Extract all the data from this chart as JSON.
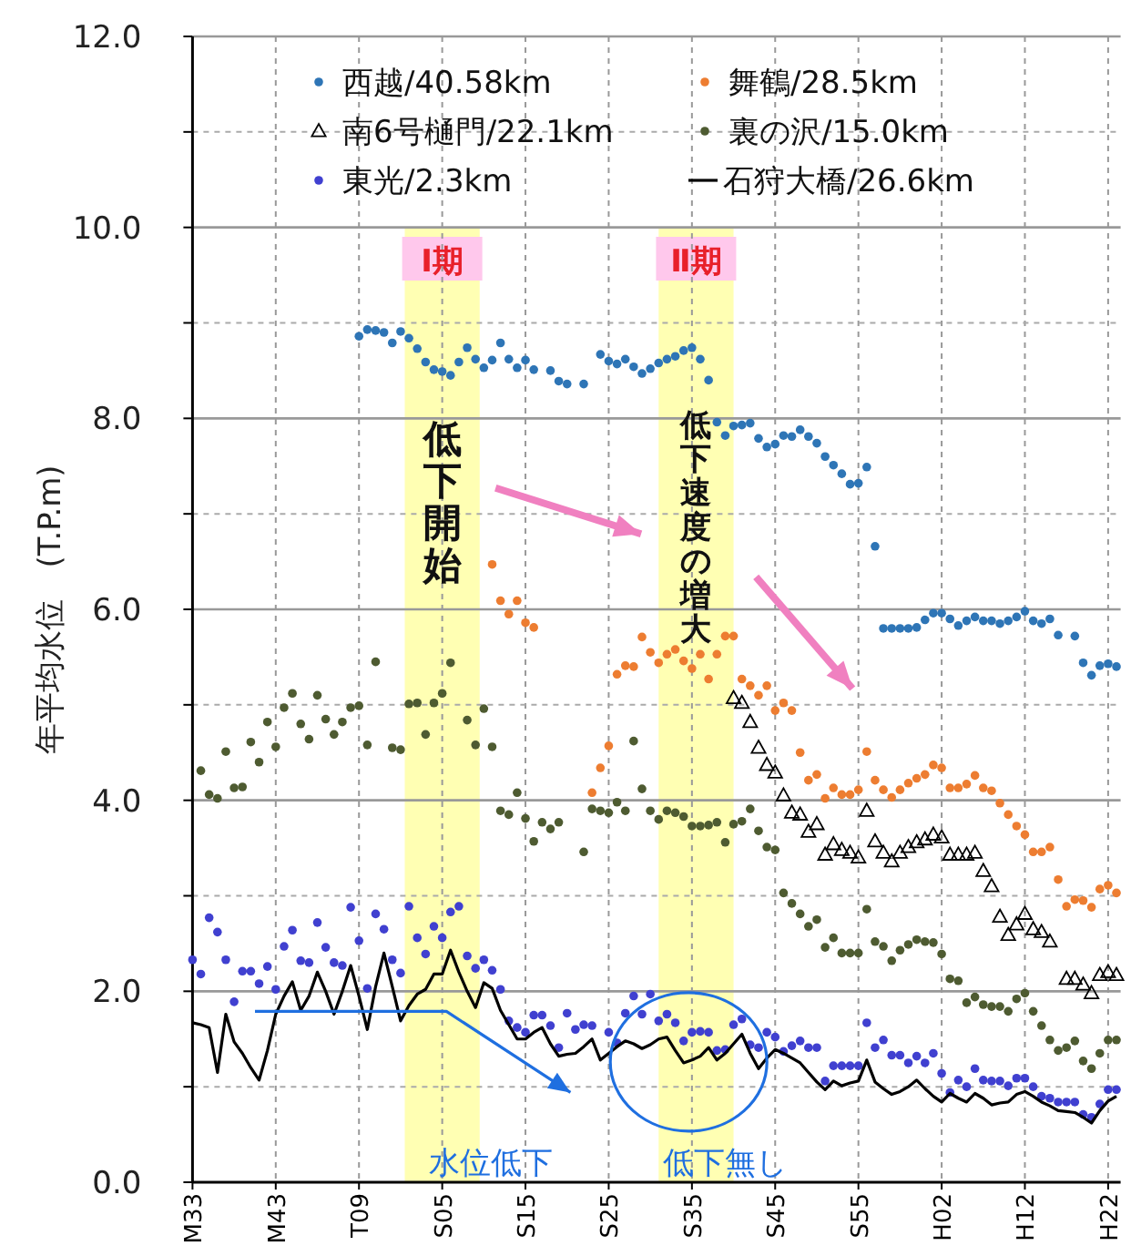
{
  "chart_data": {
    "type": "scatter",
    "ylabel": "年平均水位　(T.P.m)",
    "legend": "top",
    "grid": true,
    "categories": [
      "M33",
      null,
      null,
      null,
      null,
      null,
      null,
      null,
      null,
      null,
      "M43",
      null,
      null,
      null,
      null,
      null,
      null,
      null,
      null,
      null,
      "T09",
      null,
      null,
      null,
      null,
      null,
      null,
      null,
      null,
      null,
      "S05",
      null,
      null,
      null,
      null,
      null,
      null,
      null,
      null,
      null,
      "S15",
      null,
      null,
      null,
      null,
      null,
      null,
      null,
      null,
      null,
      "S25",
      null,
      null,
      null,
      null,
      null,
      null,
      null,
      null,
      null,
      "S35",
      null,
      null,
      null,
      null,
      null,
      null,
      null,
      null,
      null,
      "S45",
      null,
      null,
      null,
      null,
      null,
      null,
      null,
      null,
      null,
      "S55",
      null,
      null,
      null,
      null,
      null,
      null,
      null,
      null,
      null,
      "H02",
      null,
      null,
      null,
      null,
      null,
      null,
      null,
      null,
      null,
      "H12",
      null,
      null,
      null,
      null,
      null,
      null,
      null,
      null,
      null,
      "H22",
      null
    ],
    "ylim": [
      0,
      12
    ],
    "yticks": [
      {
        "value": 0,
        "label": "0.0"
      },
      {
        "value": 1,
        "label": null
      },
      {
        "value": 2,
        "label": "2.0"
      },
      {
        "value": 3,
        "label": null
      },
      {
        "value": 4,
        "label": "4.0"
      },
      {
        "value": 5,
        "label": null
      },
      {
        "value": 6,
        "label": "6.0"
      },
      {
        "value": 7,
        "label": null
      },
      {
        "value": 8,
        "label": "8.0"
      },
      {
        "value": 9,
        "label": null
      },
      {
        "value": 10,
        "label": "10.0"
      },
      {
        "value": 11,
        "label": null
      },
      {
        "value": 12,
        "label": "12.0"
      }
    ],
    "annotations": [
      "低下開始",
      "低下速度の増大",
      "水位低下",
      "低下無し",
      "Ⅰ期",
      "Ⅱ期"
    ],
    "series": [
      {
        "name": "西越/40.58km",
        "color": "#2e75b6",
        "marker": "circle",
        "values": [
          null,
          null,
          null,
          null,
          null,
          null,
          null,
          null,
          null,
          null,
          null,
          null,
          null,
          null,
          null,
          null,
          null,
          null,
          null,
          null,
          8.86,
          8.93,
          8.92,
          8.9,
          8.79,
          8.91,
          8.84,
          8.73,
          8.59,
          8.51,
          8.49,
          8.45,
          8.59,
          8.74,
          8.62,
          8.53,
          8.61,
          8.79,
          8.62,
          8.53,
          8.61,
          8.51,
          null,
          8.5,
          8.39,
          8.36,
          null,
          8.36,
          null,
          8.67,
          8.6,
          8.57,
          8.62,
          8.54,
          8.47,
          8.52,
          8.58,
          8.62,
          8.65,
          8.71,
          8.74,
          8.62,
          8.4,
          7.96,
          7.82,
          7.92,
          7.93,
          7.95,
          7.79,
          7.7,
          7.73,
          7.82,
          7.81,
          7.88,
          7.81,
          7.74,
          7.6,
          7.51,
          7.42,
          7.31,
          7.32,
          7.49,
          6.66,
          5.8,
          5.8,
          5.8,
          5.8,
          5.81,
          5.89,
          5.96,
          5.96,
          5.9,
          5.83,
          5.88,
          5.92,
          5.88,
          5.88,
          5.85,
          5.88,
          5.92,
          5.98,
          5.88,
          5.85,
          5.9,
          5.73,
          null,
          5.72,
          5.44,
          5.31,
          5.41,
          5.43,
          5.4
        ]
      },
      {
        "name": "舞鶴/28.5km",
        "color": "#ed7d31",
        "marker": "circle",
        "values": [
          null,
          null,
          null,
          null,
          null,
          null,
          null,
          null,
          null,
          null,
          null,
          null,
          null,
          null,
          null,
          null,
          null,
          null,
          null,
          null,
          null,
          null,
          null,
          null,
          null,
          null,
          null,
          null,
          null,
          null,
          null,
          null,
          null,
          null,
          null,
          null,
          6.47,
          6.09,
          5.95,
          6.09,
          5.86,
          5.81,
          null,
          null,
          null,
          null,
          null,
          null,
          4.08,
          4.34,
          4.57,
          5.32,
          5.41,
          5.4,
          5.71,
          5.55,
          5.44,
          5.53,
          5.58,
          5.46,
          5.38,
          5.53,
          5.27,
          5.53,
          5.72,
          5.72,
          5.27,
          5.2,
          5.1,
          5.2,
          4.94,
          5.02,
          4.94,
          4.5,
          4.21,
          4.27,
          4.02,
          4.13,
          4.06,
          4.06,
          4.11,
          4.51,
          4.21,
          4.11,
          4.03,
          4.11,
          4.18,
          4.23,
          4.27,
          4.37,
          4.34,
          4.13,
          4.13,
          4.17,
          4.26,
          4.13,
          4.1,
          3.97,
          3.85,
          3.73,
          3.64,
          3.46,
          3.46,
          3.51,
          3.17,
          2.89,
          2.96,
          2.95,
          2.88,
          3.07,
          3.11,
          3.03
        ]
      },
      {
        "name": "南6号樋門/22.1km",
        "color": "#000000",
        "marker": "triangle",
        "values": [
          null,
          null,
          null,
          null,
          null,
          null,
          null,
          null,
          null,
          null,
          null,
          null,
          null,
          null,
          null,
          null,
          null,
          null,
          null,
          null,
          null,
          null,
          null,
          null,
          null,
          null,
          null,
          null,
          null,
          null,
          null,
          null,
          null,
          null,
          null,
          null,
          null,
          null,
          null,
          null,
          null,
          null,
          null,
          null,
          null,
          null,
          null,
          null,
          null,
          null,
          null,
          null,
          null,
          null,
          null,
          null,
          null,
          null,
          null,
          null,
          null,
          null,
          null,
          null,
          null,
          5.07,
          5.02,
          4.82,
          4.55,
          4.37,
          4.29,
          4.05,
          3.87,
          3.85,
          3.67,
          3.75,
          3.43,
          3.54,
          3.48,
          3.45,
          3.4,
          3.89,
          3.57,
          3.45,
          3.36,
          3.45,
          3.51,
          3.56,
          3.59,
          3.64,
          3.61,
          3.43,
          3.43,
          3.43,
          3.45,
          3.26,
          3.1,
          2.78,
          2.59,
          2.7,
          2.81,
          2.65,
          2.62,
          2.52,
          null,
          2.13,
          2.13,
          2.07,
          1.98,
          2.17,
          2.2,
          2.17
        ]
      },
      {
        "name": "裏の沢/15.0km",
        "color": "#4e5b31",
        "marker": "circle",
        "values": [
          null,
          4.31,
          4.06,
          4.02,
          4.51,
          4.13,
          4.14,
          4.61,
          4.4,
          4.82,
          4.56,
          4.97,
          5.12,
          4.8,
          4.64,
          5.1,
          4.85,
          4.69,
          4.82,
          4.97,
          4.99,
          4.58,
          5.45,
          null,
          4.55,
          4.53,
          5.01,
          5.02,
          4.69,
          5.02,
          5.12,
          5.44,
          null,
          4.84,
          4.58,
          4.96,
          4.56,
          3.89,
          3.85,
          4.08,
          3.81,
          3.57,
          3.77,
          3.7,
          3.77,
          null,
          null,
          3.46,
          3.91,
          3.89,
          3.87,
          3.98,
          3.89,
          4.62,
          4.12,
          3.89,
          3.8,
          3.89,
          3.87,
          3.83,
          3.73,
          3.73,
          3.74,
          3.77,
          3.56,
          3.75,
          3.78,
          3.91,
          3.68,
          3.51,
          3.48,
          3.03,
          2.92,
          2.81,
          2.68,
          2.75,
          2.46,
          2.56,
          2.4,
          2.4,
          2.4,
          2.86,
          2.52,
          2.47,
          2.32,
          2.43,
          2.49,
          2.54,
          2.52,
          2.51,
          2.39,
          2.13,
          2.11,
          1.88,
          1.94,
          1.86,
          1.84,
          1.84,
          1.79,
          1.92,
          1.98,
          1.79,
          1.64,
          1.49,
          1.38,
          1.41,
          1.48,
          1.27,
          1.19,
          1.35,
          1.49,
          1.49
        ]
      },
      {
        "name": "東光/2.3km",
        "color": "#4040d0",
        "marker": "circle",
        "values": [
          2.33,
          2.18,
          2.77,
          2.62,
          2.33,
          1.89,
          2.21,
          2.21,
          2.08,
          2.26,
          2.02,
          2.47,
          2.64,
          2.32,
          2.3,
          2.72,
          2.46,
          2.3,
          2.27,
          2.88,
          2.53,
          2.03,
          2.81,
          2.65,
          2.33,
          2.19,
          2.89,
          2.56,
          2.39,
          2.68,
          2.56,
          2.83,
          2.89,
          2.37,
          2.24,
          2.33,
          2.22,
          2.02,
          1.69,
          1.62,
          1.57,
          1.75,
          1.75,
          1.64,
          1.41,
          1.77,
          1.6,
          1.65,
          1.64,
          null,
          1.57,
          1.46,
          1.77,
          1.95,
          1.76,
          1.97,
          1.69,
          1.76,
          1.67,
          1.48,
          1.57,
          1.58,
          1.57,
          1.38,
          1.39,
          1.65,
          1.71,
          1.44,
          1.41,
          1.57,
          1.52,
          1.37,
          1.43,
          1.48,
          1.41,
          1.41,
          1.06,
          1.22,
          1.22,
          1.22,
          1.22,
          1.67,
          1.41,
          1.49,
          1.33,
          1.33,
          1.25,
          1.32,
          1.25,
          1.35,
          1.14,
          0.94,
          1.07,
          1.0,
          1.19,
          1.07,
          1.06,
          1.06,
          1.01,
          1.09,
          1.09,
          1.0,
          0.9,
          0.88,
          0.84,
          0.84,
          0.84,
          0.71,
          0.68,
          0.82,
          0.97,
          0.97
        ]
      },
      {
        "name": "石狩大橋/26.6km",
        "color": "#000000",
        "type": "line",
        "values": [
          1.67,
          1.65,
          1.62,
          1.15,
          1.76,
          1.47,
          1.35,
          1.2,
          1.07,
          1.38,
          1.76,
          1.95,
          2.1,
          1.8,
          1.95,
          2.2,
          2.0,
          1.76,
          2.0,
          2.27,
          1.95,
          1.6,
          2.05,
          2.4,
          2.05,
          1.69,
          1.85,
          1.97,
          2.02,
          2.18,
          2.18,
          2.43,
          2.2,
          2.0,
          1.83,
          2.09,
          2.03,
          1.8,
          1.65,
          1.5,
          1.5,
          1.57,
          1.62,
          1.45,
          1.32,
          1.34,
          1.35,
          1.42,
          1.5,
          1.28,
          1.35,
          1.42,
          1.48,
          1.45,
          1.4,
          1.44,
          1.5,
          1.52,
          1.38,
          1.25,
          1.28,
          1.32,
          1.41,
          1.28,
          1.35,
          1.45,
          1.55,
          1.35,
          1.19,
          1.3,
          1.39,
          1.35,
          1.3,
          1.25,
          1.15,
          1.05,
          0.97,
          1.06,
          1.01,
          1.04,
          1.06,
          1.28,
          1.05,
          0.98,
          0.92,
          0.95,
          1.0,
          1.07,
          0.98,
          0.9,
          0.84,
          0.93,
          0.88,
          0.84,
          0.93,
          0.88,
          0.81,
          0.83,
          0.84,
          0.92,
          0.95,
          0.9,
          0.84,
          0.8,
          0.75,
          0.74,
          0.73,
          0.68,
          0.62,
          0.75,
          0.85,
          0.9
        ]
      }
    ]
  }
}
